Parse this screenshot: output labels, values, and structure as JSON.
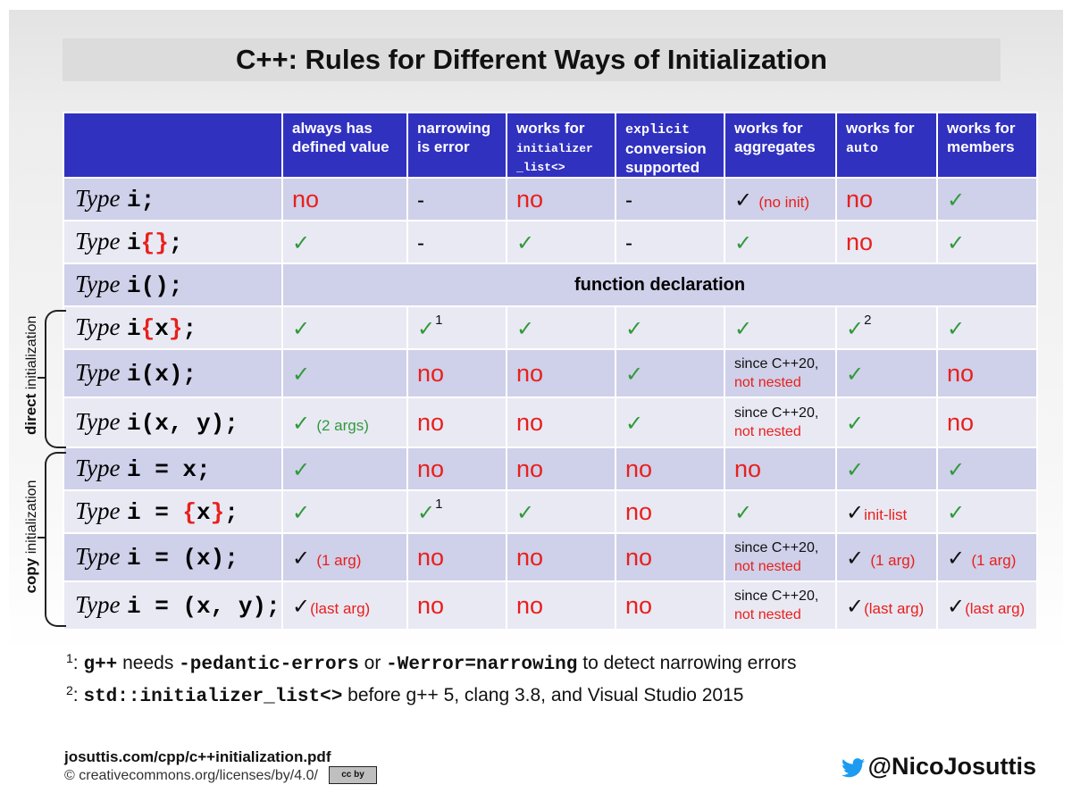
{
  "title": "C++: Rules for Different Ways of Initialization",
  "columns": [
    {
      "parts": [
        "always has",
        "defined value"
      ]
    },
    {
      "parts": [
        "narrowing",
        "is error"
      ]
    },
    {
      "parts": [
        "works for"
      ],
      "mono": [
        "initializer",
        "_list<>"
      ]
    },
    {
      "mono_top": "explicit",
      "parts": [
        "conversion",
        "supported"
      ]
    },
    {
      "parts": [
        "works for",
        "aggregates"
      ]
    },
    {
      "parts": [
        "works for"
      ],
      "mono_one": "auto"
    },
    {
      "parts": [
        "works for",
        "members"
      ]
    }
  ],
  "type_word": "Type",
  "rows": [
    {
      "code": [
        {
          "t": "i"
        },
        {
          "t": ";"
        }
      ]
    },
    {
      "code": [
        {
          "t": "i"
        },
        {
          "t": "{}",
          "red": true
        },
        {
          "t": ";"
        }
      ]
    },
    {
      "code": [
        {
          "t": "i"
        },
        {
          "t": "();"
        }
      ],
      "merged": "function declaration"
    },
    {
      "code": [
        {
          "t": "i"
        },
        {
          "t": "{",
          "red": true
        },
        {
          "t": "x"
        },
        {
          "t": "}",
          "red": true
        },
        {
          "t": ";"
        }
      ]
    },
    {
      "code": [
        {
          "t": "i"
        },
        {
          "t": "(x);"
        }
      ]
    },
    {
      "code": [
        {
          "t": "i"
        },
        {
          "t": "(x, y);"
        }
      ]
    },
    {
      "code": [
        {
          "t": "i = x;"
        }
      ]
    },
    {
      "code": [
        {
          "t": "i = "
        },
        {
          "t": "{",
          "red": true
        },
        {
          "t": "x"
        },
        {
          "t": "}",
          "red": true
        },
        {
          "t": ";"
        }
      ]
    },
    {
      "code": [
        {
          "t": "i = (x);"
        }
      ]
    },
    {
      "code": [
        {
          "t": "i = (x, y);"
        }
      ]
    }
  ],
  "cells": [
    [
      {
        "k": "no"
      },
      {
        "k": "dash"
      },
      {
        "k": "no"
      },
      {
        "k": "dash"
      },
      {
        "k": "chkb",
        "note": "(no init)",
        "nk": "red"
      },
      {
        "k": "no"
      },
      {
        "k": "chk"
      }
    ],
    [
      {
        "k": "chk"
      },
      {
        "k": "dash"
      },
      {
        "k": "chk"
      },
      {
        "k": "dash"
      },
      {
        "k": "chk"
      },
      {
        "k": "no"
      },
      {
        "k": "chk"
      }
    ],
    [],
    [
      {
        "k": "chk"
      },
      {
        "k": "chk",
        "sup": "1"
      },
      {
        "k": "chk"
      },
      {
        "k": "chk"
      },
      {
        "k": "chk"
      },
      {
        "k": "chk",
        "sup": "2"
      },
      {
        "k": "chk"
      }
    ],
    [
      {
        "k": "chk"
      },
      {
        "k": "no"
      },
      {
        "k": "no"
      },
      {
        "k": "chk"
      },
      {
        "k": "since"
      },
      {
        "k": "chk"
      },
      {
        "k": "no"
      }
    ],
    [
      {
        "k": "chk",
        "note": "(2 args)",
        "nk": "green"
      },
      {
        "k": "no"
      },
      {
        "k": "no"
      },
      {
        "k": "chk"
      },
      {
        "k": "since"
      },
      {
        "k": "chk"
      },
      {
        "k": "no"
      }
    ],
    [
      {
        "k": "chk"
      },
      {
        "k": "no"
      },
      {
        "k": "no"
      },
      {
        "k": "no"
      },
      {
        "k": "no"
      },
      {
        "k": "chk"
      },
      {
        "k": "chk"
      }
    ],
    [
      {
        "k": "chk"
      },
      {
        "k": "chk",
        "sup": "1"
      },
      {
        "k": "chk"
      },
      {
        "k": "no"
      },
      {
        "k": "chk"
      },
      {
        "k": "chkb",
        "note": "init-list",
        "nk": "red",
        "tight": true
      },
      {
        "k": "chk"
      }
    ],
    [
      {
        "k": "chkb",
        "note": "(1 arg)",
        "nk": "red"
      },
      {
        "k": "no"
      },
      {
        "k": "no"
      },
      {
        "k": "no"
      },
      {
        "k": "since"
      },
      {
        "k": "chkb",
        "note": "(1 arg)",
        "nk": "red"
      },
      {
        "k": "chkb",
        "note": "(1 arg)",
        "nk": "red"
      }
    ],
    [
      {
        "k": "chkb",
        "note": "(last arg)",
        "nk": "red",
        "tight": true
      },
      {
        "k": "no"
      },
      {
        "k": "no"
      },
      {
        "k": "no"
      },
      {
        "k": "since"
      },
      {
        "k": "chkb",
        "note": "(last arg)",
        "nk": "red",
        "tight": true
      },
      {
        "k": "chkb",
        "note": "(last arg)",
        "nk": "red",
        "tight": true
      }
    ]
  ],
  "labels": {
    "no": "no",
    "dash": "-",
    "check": "✓",
    "since_line1": "since C++20,",
    "since_line2": "not nested"
  },
  "side": {
    "direct_bold": "direct",
    "direct_rest": " initialization",
    "copy_bold": "copy",
    "copy_rest": " initialization"
  },
  "footnotes": {
    "f1_mark": "1",
    "f1_colon": ": ",
    "f1_code1": "g++",
    "f1_text1": " needs ",
    "f1_code2": "-pedantic-errors",
    "f1_text2": " or ",
    "f1_code3": "-Werror=narrowing",
    "f1_text3": " to detect narrowing errors",
    "f2_mark": "2",
    "f2_colon": ": ",
    "f2_code": "std::initializer_list<>",
    "f2_text": " before g++ 5, clang 3.8, and Visual Studio 2015"
  },
  "footer": {
    "url": "josuttis.com/cpp/c++initialization.pdf",
    "license": "© creativecommons.org/licenses/by/4.0/",
    "badge": "cc by",
    "twitter": "@NicoJosuttis"
  },
  "colors": {
    "header_blue": "#3131c0",
    "no_red": "#e8201c",
    "check_green": "#2f9a3a",
    "row_light": "#e9e9f4",
    "row_dark": "#cfd0e9"
  }
}
